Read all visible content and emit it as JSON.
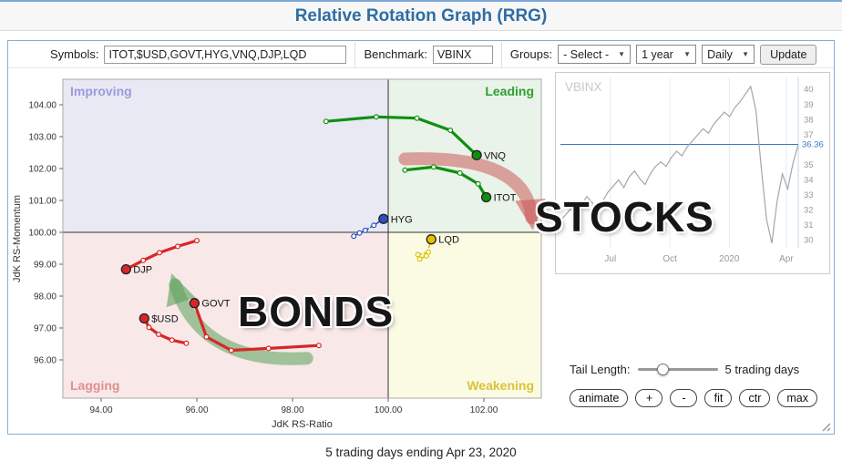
{
  "page": {
    "title": "Relative Rotation Graph (RRG)",
    "footer": "5 trading days ending Apr 23, 2020"
  },
  "toolbar": {
    "symbols_label": "Symbols:",
    "symbols_value": "ITOT,$USD,GOVT,HYG,VNQ,DJP,LQD",
    "benchmark_label": "Benchmark:",
    "benchmark_value": "VBINX",
    "groups_label": "Groups:",
    "groups_selected": "- Select -",
    "period_selected": "1 year",
    "frequency_selected": "Daily",
    "update_label": "Update"
  },
  "controls": {
    "tail_length_label": "Tail Length:",
    "tail_length_value": "5 trading days",
    "slider_value": "5",
    "buttons": [
      {
        "label": "animate"
      },
      {
        "label": "+"
      },
      {
        "label": "-"
      },
      {
        "label": "fit"
      },
      {
        "label": "ctr"
      },
      {
        "label": "max"
      }
    ]
  },
  "chart_data": [
    {
      "id": "rrg",
      "type": "scatter",
      "xlabel": "JdK RS-Ratio",
      "ylabel": "JdK RS-Momentum",
      "xlim": [
        93.2,
        103.2
      ],
      "ylim": [
        94.8,
        104.8
      ],
      "xticks": [
        94,
        96,
        98,
        100,
        102
      ],
      "yticks": [
        96,
        97,
        98,
        99,
        100,
        101,
        102,
        103,
        104
      ],
      "center": [
        100,
        100
      ],
      "quadrants": [
        {
          "name": "Improving",
          "position": "top-left",
          "color": "#e9e9f4",
          "label_color": "#9a9ade"
        },
        {
          "name": "Leading",
          "position": "top-right",
          "color": "#e9f3e9",
          "label_color": "#2f9e2f"
        },
        {
          "name": "Lagging",
          "position": "bottom-left",
          "color": "#f8e8e8",
          "label_color": "#e08f8f"
        },
        {
          "name": "Weakening",
          "position": "bottom-right",
          "color": "#fbfbe4",
          "label_color": "#d9c23a"
        }
      ],
      "series": [
        {
          "name": "VNQ",
          "color": "#0f8f0f",
          "style": "solid",
          "points": [
            [
              98.7,
              103.48
            ],
            [
              99.75,
              103.62
            ],
            [
              100.6,
              103.58
            ],
            [
              101.3,
              103.2
            ],
            [
              101.85,
              102.42
            ]
          ]
        },
        {
          "name": "ITOT",
          "color": "#0f8f0f",
          "style": "solid",
          "points": [
            [
              100.35,
              101.95
            ],
            [
              100.95,
              102.05
            ],
            [
              101.5,
              101.86
            ],
            [
              101.88,
              101.52
            ],
            [
              102.05,
              101.1
            ]
          ]
        },
        {
          "name": "HYG",
          "color": "#2a52be",
          "style": "dashed",
          "points": [
            [
              99.28,
              99.88
            ],
            [
              99.4,
              99.98
            ],
            [
              99.52,
              100.06
            ],
            [
              99.7,
              100.22
            ],
            [
              99.9,
              100.42
            ]
          ]
        },
        {
          "name": "LQD",
          "color": "#e3c000",
          "style": "dashed",
          "points": [
            [
              100.62,
              99.3
            ],
            [
              100.84,
              99.38
            ],
            [
              100.66,
              99.16
            ],
            [
              100.8,
              99.26
            ],
            [
              100.9,
              99.78
            ]
          ]
        },
        {
          "name": "DJP",
          "color": "#d62728",
          "style": "solid",
          "points": [
            [
              96.0,
              99.74
            ],
            [
              95.6,
              99.56
            ],
            [
              95.22,
              99.36
            ],
            [
              94.88,
              99.12
            ],
            [
              94.52,
              98.84
            ]
          ]
        },
        {
          "name": "GOVT",
          "color": "#d62728",
          "style": "solid",
          "points": [
            [
              98.55,
              96.45
            ],
            [
              97.5,
              96.36
            ],
            [
              96.72,
              96.3
            ],
            [
              96.2,
              96.72
            ],
            [
              95.95,
              97.78
            ]
          ]
        },
        {
          "name": "$USD",
          "color": "#d62728",
          "style": "solid",
          "points": [
            [
              95.78,
              96.52
            ],
            [
              95.48,
              96.62
            ],
            [
              95.2,
              96.8
            ],
            [
              95.0,
              97.02
            ],
            [
              94.9,
              97.3
            ]
          ]
        }
      ],
      "annotations": [
        {
          "text": "STOCKS",
          "color": "#161616"
        },
        {
          "text": "BONDS",
          "color": "#161616"
        }
      ],
      "arrows": [
        {
          "name": "stocks-arrow",
          "color": "#cc5a5a",
          "from": [
            100.35,
            102.3
          ],
          "ctrl": [
            102.9,
            102.45
          ],
          "to": [
            103.0,
            100.45
          ]
        },
        {
          "name": "bonds-arrow",
          "color": "#5aa05a",
          "from": [
            98.3,
            96.05
          ],
          "ctrl": [
            96.1,
            95.85
          ],
          "to": [
            95.55,
            98.35
          ]
        }
      ]
    },
    {
      "id": "benchmark",
      "type": "line",
      "title": "VBINX",
      "line_color": "#a6a6a6",
      "last_price": 36.36,
      "last_price_color": "#3b78c3",
      "ylim": [
        29.5,
        40.8
      ],
      "yticks": [
        30,
        31,
        32,
        33,
        34,
        35,
        37,
        38,
        39,
        40
      ],
      "xticks": [
        {
          "label": "Jul",
          "pos": 0.21
        },
        {
          "label": "Oct",
          "pos": 0.46
        },
        {
          "label": "2020",
          "pos": 0.71
        },
        {
          "label": "Apr",
          "pos": 0.95
        }
      ],
      "values": [
        31.3,
        31.7,
        32.1,
        31.8,
        32.4,
        32.9,
        32.5,
        31.9,
        32.6,
        33.2,
        33.6,
        34.0,
        33.5,
        34.2,
        34.6,
        34.1,
        33.7,
        34.4,
        34.9,
        35.2,
        34.9,
        35.5,
        35.9,
        35.6,
        36.2,
        36.6,
        37.0,
        37.4,
        37.1,
        37.7,
        38.1,
        38.5,
        38.2,
        38.8,
        39.2,
        39.7,
        40.2,
        38.6,
        34.8,
        31.4,
        29.8,
        32.6,
        34.4,
        33.4,
        35.1,
        36.36
      ]
    }
  ]
}
